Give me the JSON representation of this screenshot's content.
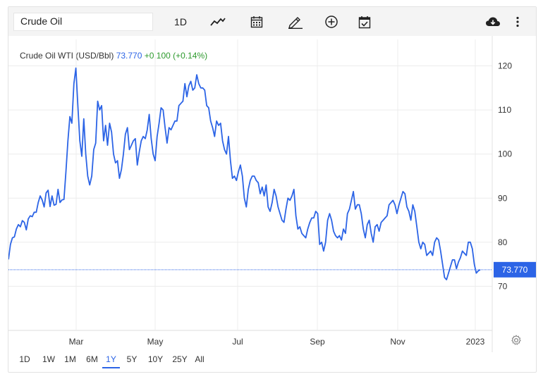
{
  "toolbar": {
    "search_value": "Crude Oil",
    "interval_label": "1D"
  },
  "quote": {
    "name": "Crude Oil WTI (USD/Bbl)",
    "last": "73.770",
    "change": "+0.100 (+0.14%)"
  },
  "price_tag": "73.770",
  "range_buttons": [
    "1D",
    "1W",
    "1M",
    "6M",
    "1Y",
    "5Y",
    "10Y",
    "25Y",
    "All"
  ],
  "active_range": "1Y",
  "colors": {
    "line": "#2c64e6",
    "positive": "#2e9a2e",
    "grid": "#ececec"
  },
  "chart_data": {
    "type": "line",
    "title": "Crude Oil WTI (USD/Bbl)",
    "xlabel": "",
    "ylabel": "",
    "x_ticks": [
      "Mar",
      "May",
      "Jul",
      "Sep",
      "Nov",
      "2023"
    ],
    "y_ticks": [
      70,
      80,
      90,
      100,
      110,
      120
    ],
    "ylim": [
      60,
      126
    ],
    "grid": true,
    "last_value": 73.77,
    "series": [
      {
        "name": "Crude Oil WTI",
        "values": [
          76.1,
          79.5,
          81.0,
          81.2,
          83.0,
          84.0,
          83.5,
          84.9,
          84.5,
          82.8,
          85.3,
          86.0,
          85.8,
          86.8,
          86.8,
          89.0,
          90.5,
          89.6,
          88.0,
          91.2,
          91.8,
          88.1,
          90.5,
          88.4,
          88.6,
          92.0,
          89.0,
          89.6,
          89.7,
          96.0,
          103.0,
          108.5,
          107.0,
          116.0,
          119.5,
          111.0,
          103.0,
          99.5,
          108.0,
          100.0,
          95.0,
          93.0,
          95.0,
          101.0,
          102.5,
          112.0,
          110.0,
          111.0,
          103.0,
          106.5,
          102.0,
          107.0,
          105.0,
          100.0,
          98.0,
          98.5,
          94.5,
          96.5,
          100.0,
          104.5,
          106.0,
          101.0,
          102.0,
          103.0,
          103.5,
          97.5,
          100.5,
          103.0,
          104.0,
          103.5,
          105.5,
          109.0,
          103.5,
          100.0,
          98.5,
          104.0,
          107.0,
          110.5,
          110.0,
          106.0,
          102.5,
          106.0,
          105.5,
          106.5,
          107.5,
          107.5,
          111.0,
          111.5,
          112.0,
          116.0,
          113.0,
          115.5,
          116.5,
          114.5,
          115.0,
          118.0,
          116.0,
          115.0,
          115.0,
          114.5,
          111.0,
          110.5,
          107.5,
          106.0,
          104.0,
          107.5,
          106.5,
          107.0,
          103.0,
          101.0,
          100.0,
          104.0,
          98.5,
          94.5,
          95.0,
          94.0,
          96.0,
          97.5,
          95.0,
          90.0,
          88.0,
          92.0,
          94.0,
          95.0,
          95.0,
          94.0,
          93.5,
          91.0,
          92.5,
          90.5,
          93.0,
          88.0,
          87.0,
          89.0,
          92.0,
          90.5,
          88.0,
          86.5,
          85.0,
          84.5,
          87.5,
          90.0,
          89.5,
          90.5,
          92.0,
          86.0,
          83.0,
          83.5,
          82.0,
          81.5,
          81.0,
          83.0,
          84.5,
          85.5,
          85.5,
          87.0,
          86.5,
          79.5,
          80.0,
          78.0,
          80.0,
          85.0,
          86.5,
          85.0,
          82.5,
          81.5,
          81.0,
          81.5,
          80.5,
          83.0,
          82.0,
          86.5,
          87.5,
          89.5,
          91.5,
          87.5,
          88.5,
          88.5,
          86.5,
          83.0,
          81.0,
          84.0,
          85.0,
          82.0,
          80.0,
          83.5,
          84.0,
          82.5,
          84.5,
          85.0,
          85.5,
          86.0,
          88.5,
          89.0,
          89.5,
          88.5,
          86.5,
          88.5,
          90.0,
          91.5,
          91.0,
          88.0,
          87.0,
          85.0,
          88.5,
          87.0,
          83.5,
          80.0,
          78.5,
          80.0,
          79.5,
          77.0,
          77.5,
          78.0,
          77.0,
          80.0,
          81.0,
          80.5,
          78.0,
          75.0,
          72.0,
          71.5,
          73.0,
          74.5,
          76.0,
          76.0,
          74.0,
          75.5,
          76.5,
          78.0,
          77.5,
          77.0,
          80.0,
          80.0,
          78.5,
          75.0,
          73.0,
          73.5,
          73.77
        ]
      }
    ]
  }
}
